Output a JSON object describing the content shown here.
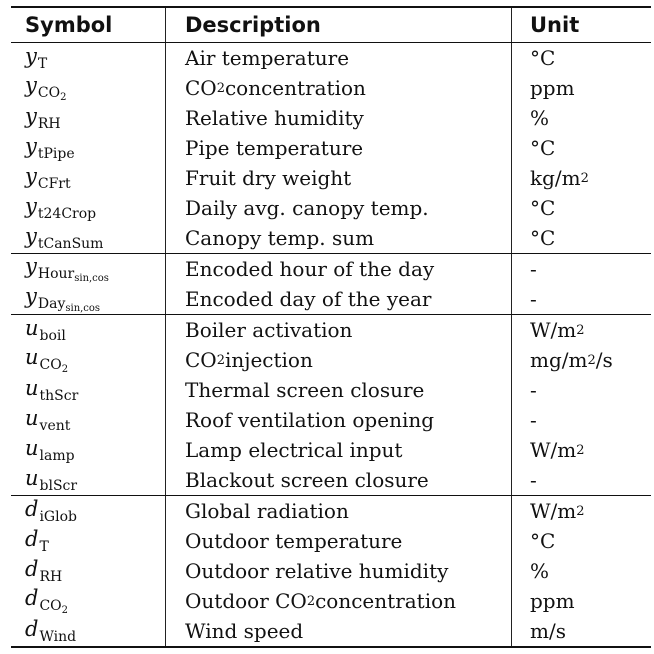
{
  "header": {
    "symbol": "Symbol",
    "description": "Description",
    "unit": "Unit"
  },
  "groups": [
    {
      "rows": [
        {
          "sym": "y",
          "sub": "T",
          "desc": "Air temperature",
          "unit": "°C"
        },
        {
          "sym": "y",
          "sub": "CO2",
          "desc": "CO2 concentration",
          "unit": "ppm"
        },
        {
          "sym": "y",
          "sub": "RH",
          "desc": "Relative humidity",
          "unit": "%"
        },
        {
          "sym": "y",
          "sub": "tPipe",
          "desc": "Pipe temperature",
          "unit": "°C"
        },
        {
          "sym": "y",
          "sub": "CFrt",
          "desc": "Fruit dry weight",
          "unit": "kg/m2"
        },
        {
          "sym": "y",
          "sub": "t24Crop",
          "desc": "Daily avg. canopy temp.",
          "unit": "°C"
        },
        {
          "sym": "y",
          "sub": "tCanSum",
          "desc": "Canopy temp. sum",
          "unit": "°C"
        }
      ]
    },
    {
      "rows": [
        {
          "sym": "y",
          "sub": "Hoursin,cos",
          "desc": "Encoded hour of the day",
          "unit": "-"
        },
        {
          "sym": "y",
          "sub": "Daysin,cos",
          "desc": "Encoded day of the year",
          "unit": "-"
        }
      ]
    },
    {
      "rows": [
        {
          "sym": "u",
          "sub": "boil",
          "desc": "Boiler activation",
          "unit": "W/m2"
        },
        {
          "sym": "u",
          "sub": "CO2",
          "desc": "CO2 injection",
          "unit": "mg/m2/s"
        },
        {
          "sym": "u",
          "sub": "thScr",
          "desc": "Thermal screen closure",
          "unit": "-"
        },
        {
          "sym": "u",
          "sub": "vent",
          "desc": "Roof ventilation opening",
          "unit": "-"
        },
        {
          "sym": "u",
          "sub": "lamp",
          "desc": "Lamp electrical input",
          "unit": "W/m2"
        },
        {
          "sym": "u",
          "sub": "blScr",
          "desc": "Blackout screen closure",
          "unit": "-"
        }
      ]
    },
    {
      "rows": [
        {
          "sym": "d",
          "sub": "iGlob",
          "desc": "Global radiation",
          "unit": "W/m2"
        },
        {
          "sym": "d",
          "sub": "T",
          "desc": "Outdoor temperature",
          "unit": "°C"
        },
        {
          "sym": "d",
          "sub": "RH",
          "desc": "Outdoor relative humidity",
          "unit": "%"
        },
        {
          "sym": "d",
          "sub": "CO2",
          "desc": "Outdoor CO2 concentration",
          "unit": "ppm"
        },
        {
          "sym": "d",
          "sub": "Wind",
          "desc": "Wind speed",
          "unit": "m/s"
        }
      ]
    }
  ]
}
